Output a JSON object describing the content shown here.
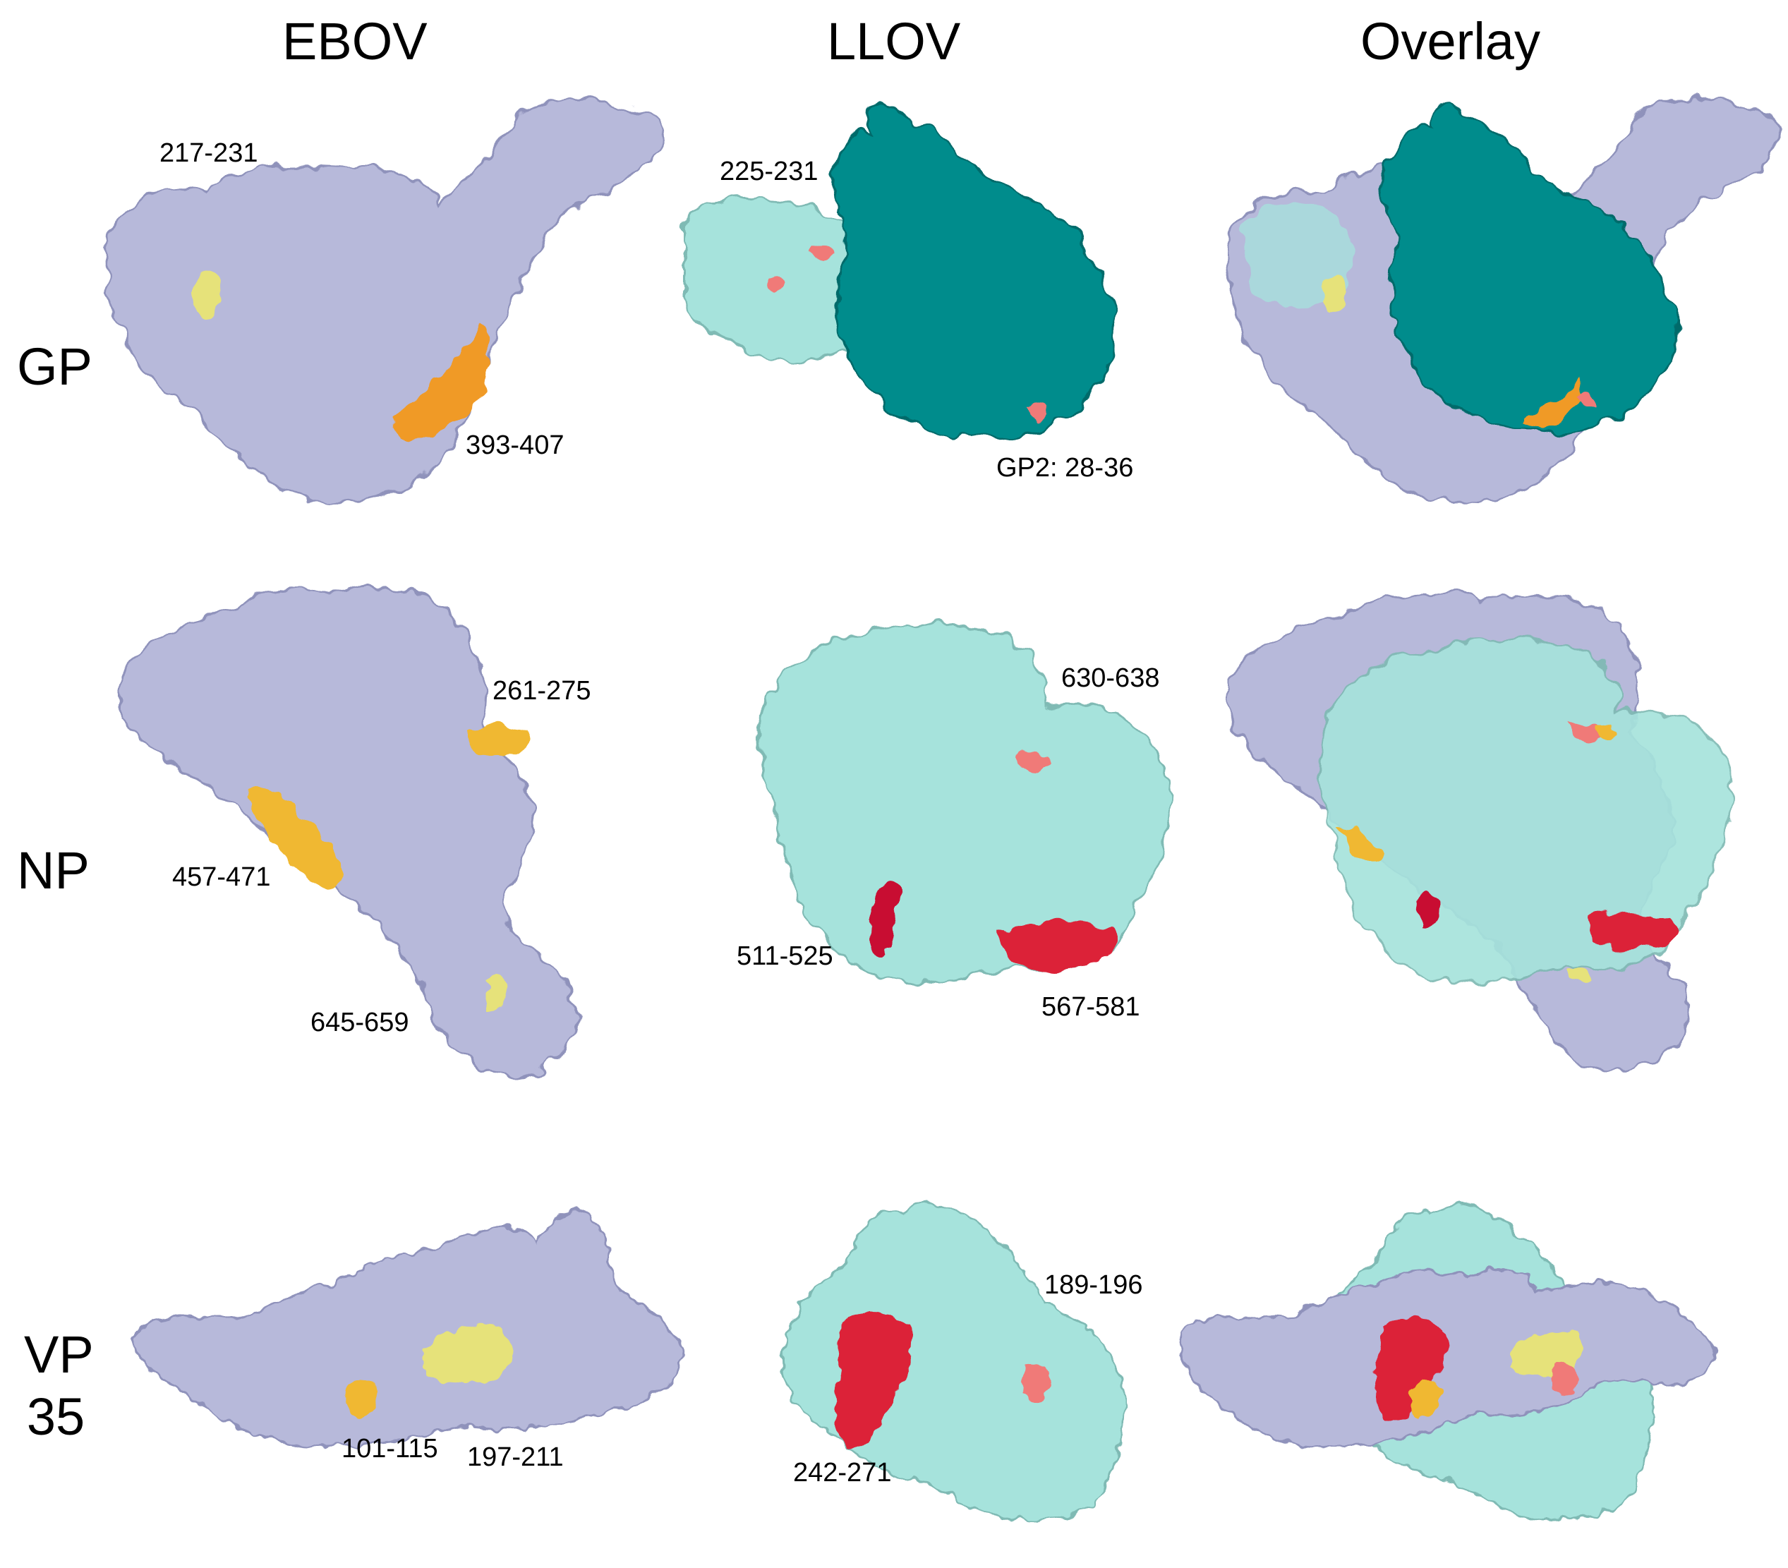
{
  "columns": [
    "EBOV",
    "LLOV",
    "Overlay"
  ],
  "rows": {
    "gp": "GP",
    "np": "NP",
    "vp35_line1": "VP",
    "vp35_line2": "35"
  },
  "annotations": {
    "gp_ebov_a": "217-231",
    "gp_ebov_b": "393-407",
    "gp_llov_a": "225-231",
    "gp_llov_b": "GP2: 28-36",
    "np_ebov_a": "261-275",
    "np_ebov_b": "457-471",
    "np_ebov_c": "645-659",
    "np_llov_a": "630-638",
    "np_llov_b": "511-525",
    "np_llov_c": "567-581",
    "vp35_ebov_a": "101-115",
    "vp35_ebov_b": "197-211",
    "vp35_llov_a": "189-196",
    "vp35_llov_b": "242-271"
  },
  "colors": {
    "ebov_surface": "#b7b9da",
    "llov_surface": "#a6e3dc",
    "llov_gp2_surface": "#008c8c",
    "epitope_light_yellow": "#e6e27a",
    "epitope_yellow_orange": "#f0b830",
    "epitope_orange": "#f09a28",
    "epitope_salmon": "#f07a78",
    "epitope_red": "#dc2038",
    "epitope_crimson": "#c81030"
  }
}
